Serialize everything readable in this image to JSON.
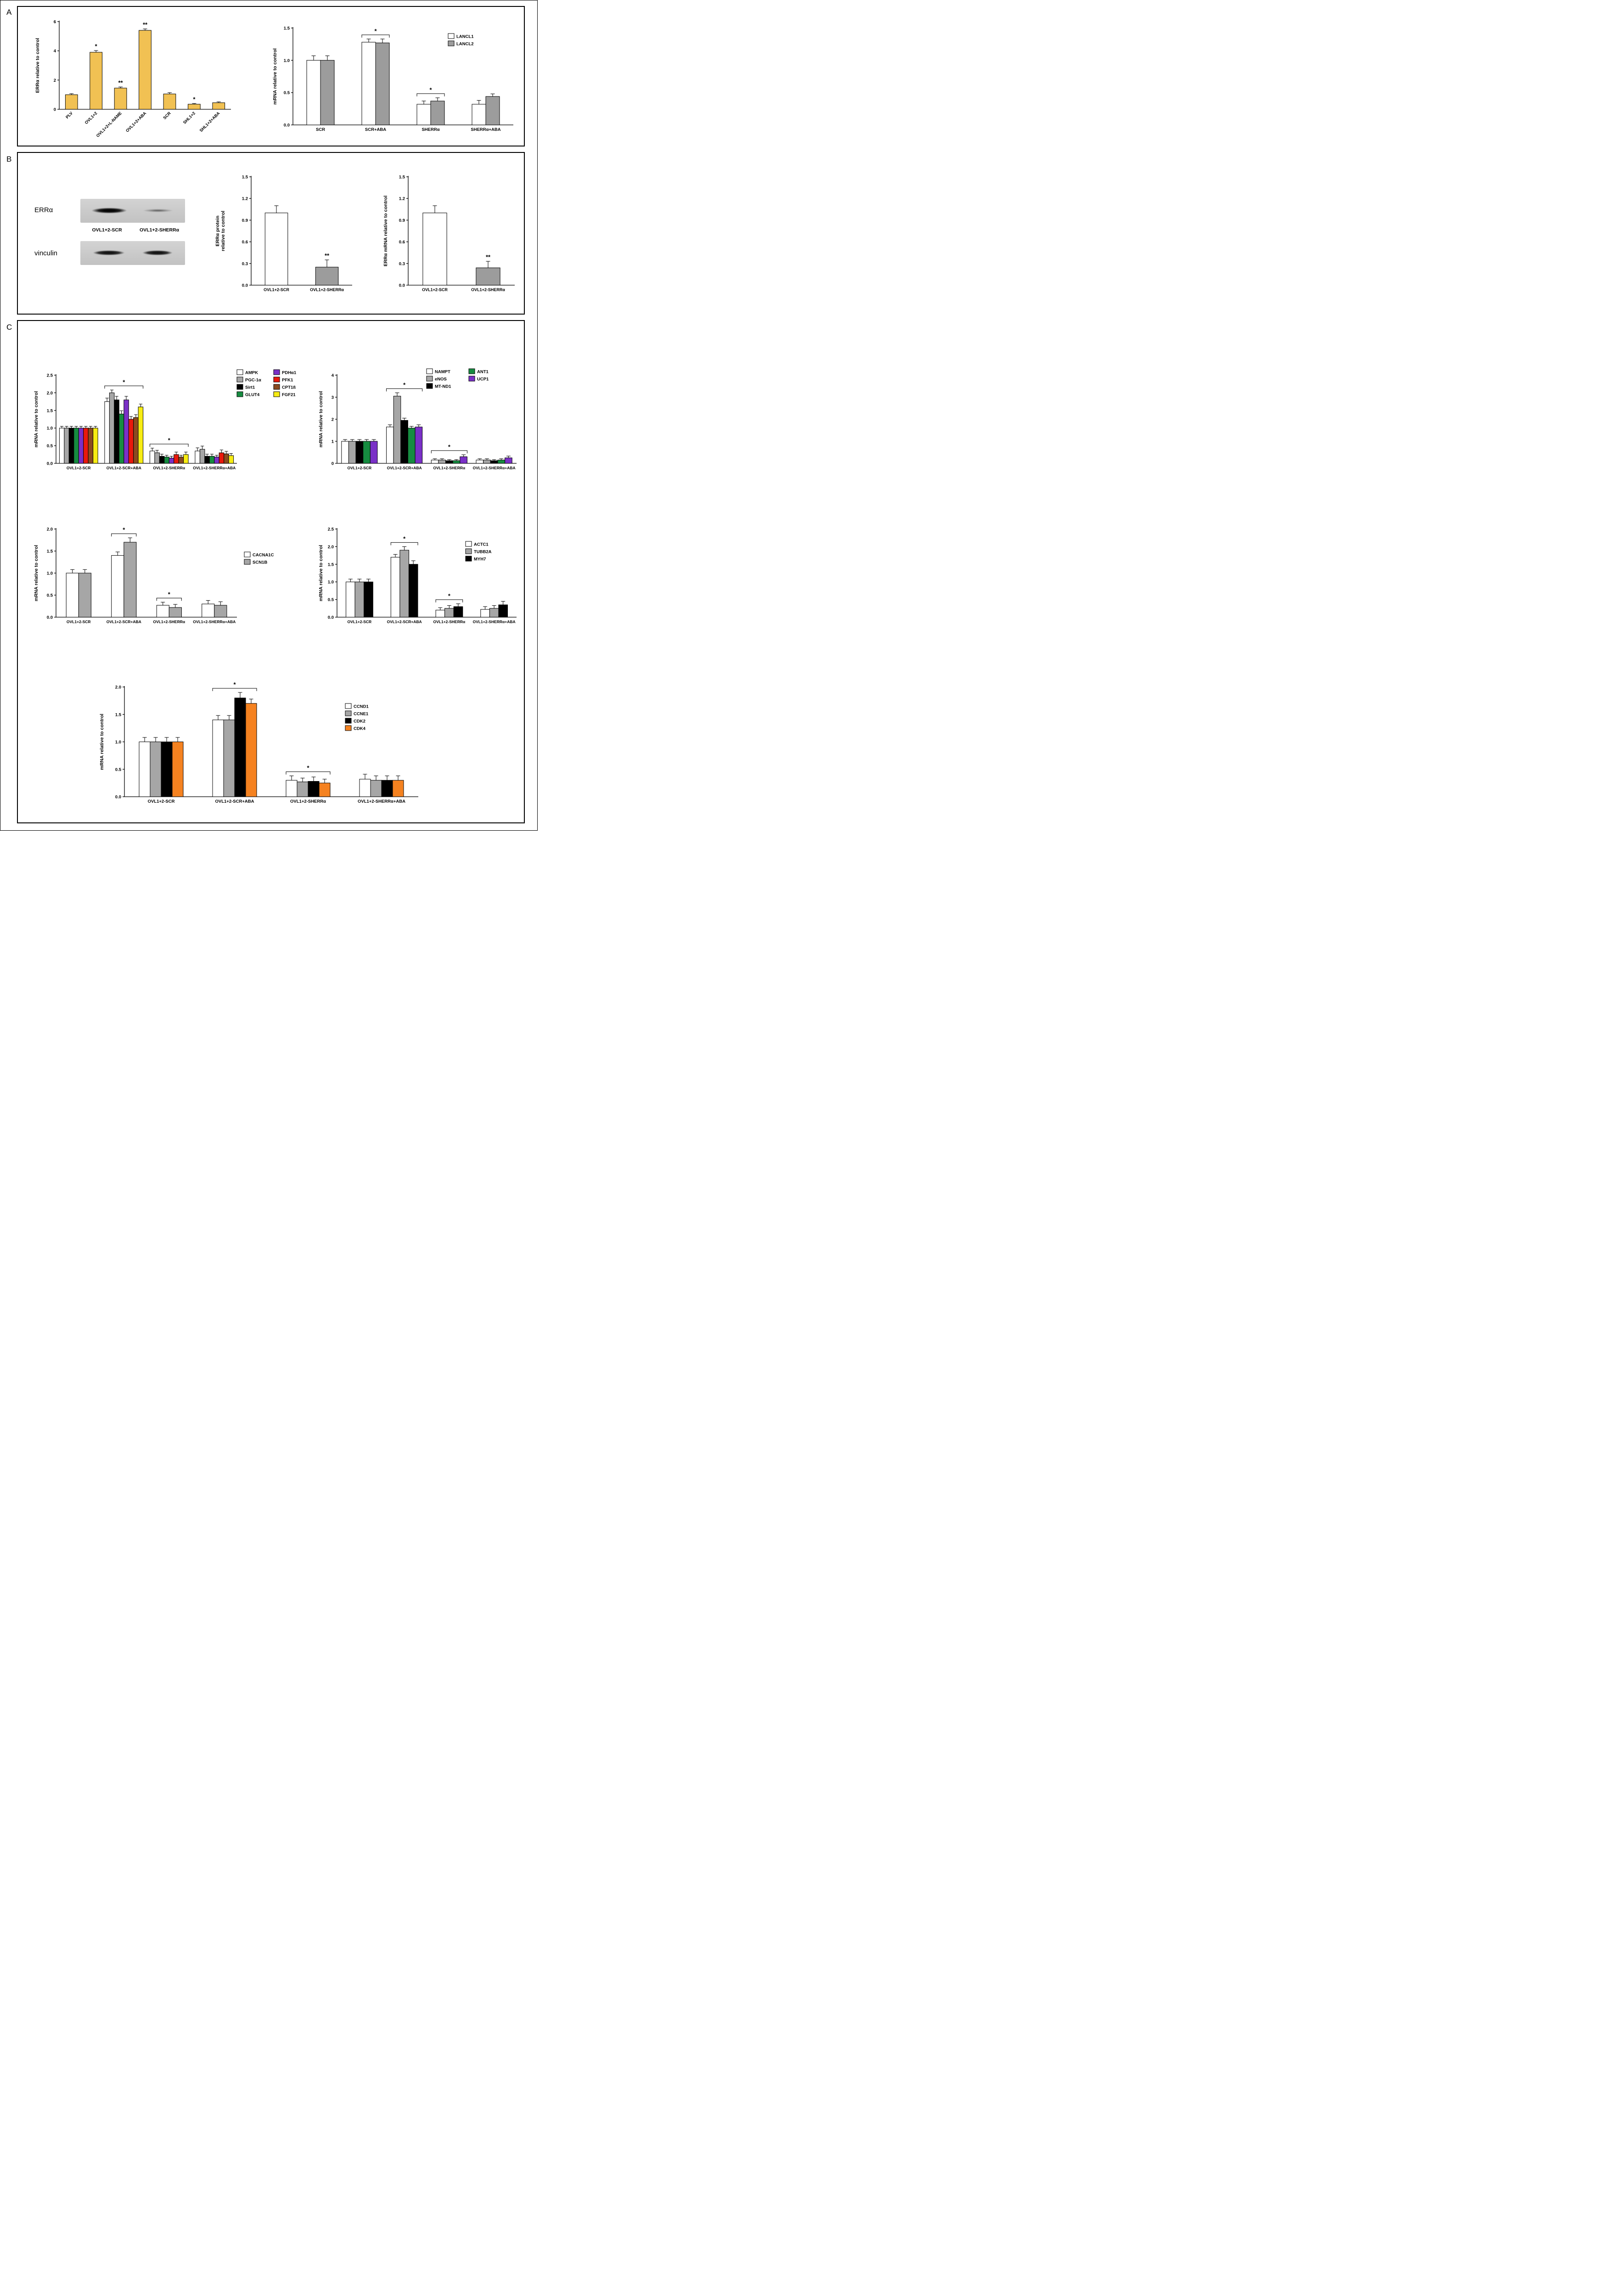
{
  "page": {
    "panel_a_label": "A",
    "panel_b_label": "B",
    "panel_c_label": "C"
  },
  "panel_b": {
    "blot": {
      "protein1": "ERRα",
      "protein2": "vinculin",
      "lane1": "OVL1+2-SCR",
      "lane2": "OVL1+2-SHERRα"
    }
  },
  "chart_data": [
    {
      "id": "erra-lentivirus",
      "type": "bar",
      "title": "",
      "ylabel": "ERRα relative to control",
      "ylim": [
        0,
        6
      ],
      "yticks": [
        0,
        2,
        4,
        6
      ],
      "ytick_labels": [
        "0",
        "2",
        "4",
        "6"
      ],
      "categories": [
        "PLV",
        "OVL1+2",
        "OVL1+2+L-NAME",
        "OVL1+2+ABA",
        "SCR",
        "SHL1+2",
        "SHL1+2+ABA"
      ],
      "series": [
        {
          "name": "",
          "color": "#F1C153",
          "values": [
            1.0,
            3.9,
            1.45,
            5.4,
            1.05,
            0.35,
            0.45
          ],
          "errors": [
            0.07,
            0.12,
            0.08,
            0.1,
            0.09,
            0.05,
            0.06
          ]
        }
      ],
      "annotations": [
        {
          "type": "star",
          "cat": 1,
          "text": "*"
        },
        {
          "type": "star",
          "cat": 2,
          "text": "**"
        },
        {
          "type": "star",
          "cat": 3,
          "text": "**"
        },
        {
          "type": "star",
          "cat": 5,
          "text": "*"
        }
      ],
      "legend": false
    },
    {
      "id": "lancl-mrna",
      "type": "bar",
      "title": "",
      "ylabel": "mRNA relative to control",
      "ylim": [
        0,
        1.5
      ],
      "yticks": [
        0,
        0.5,
        1.0,
        1.5
      ],
      "ytick_labels": [
        "0.0",
        "0.5",
        "1.0",
        "1.5"
      ],
      "categories": [
        "SCR",
        "SCR+ABA",
        "SHERRα",
        "SHERRα+ABA"
      ],
      "series": [
        {
          "name": "LANCL1",
          "color": "#FFFFFF",
          "values": [
            1.0,
            1.28,
            0.32,
            0.32
          ],
          "errors": [
            0.07,
            0.05,
            0.05,
            0.06
          ]
        },
        {
          "name": "LANCL2",
          "color": "#9C9C9C",
          "values": [
            1.0,
            1.27,
            0.37,
            0.44
          ],
          "errors": [
            0.07,
            0.06,
            0.05,
            0.04
          ]
        }
      ],
      "annotations": [
        {
          "type": "bracket",
          "cat": 1,
          "text": "*"
        },
        {
          "type": "bracket",
          "cat": 2,
          "text": "*"
        }
      ],
      "legend": true
    },
    {
      "id": "erra-protein",
      "type": "bar",
      "title": "",
      "ylabel": "ERRα protein\nrelative to control",
      "ylim": [
        0,
        1.5
      ],
      "yticks": [
        0,
        0.3,
        0.6,
        0.9,
        1.2,
        1.5
      ],
      "ytick_labels": [
        "0.0",
        "0.3",
        "0.6",
        "0.9",
        "1.2",
        "1.5"
      ],
      "categories": [
        "OVL1+2-SCR",
        "OVL1+2-SHERRα"
      ],
      "series": [
        {
          "name": "",
          "colors": [
            "#FFFFFF",
            "#9C9C9C"
          ],
          "values": [
            1.0,
            0.25
          ],
          "errors": [
            0.1,
            0.1
          ]
        }
      ],
      "annotations": [
        {
          "type": "star",
          "cat": 1,
          "text": "**"
        }
      ],
      "legend": false
    },
    {
      "id": "erra-mrna",
      "type": "bar",
      "title": "",
      "ylabel": "ERRα mRNA relative to control",
      "ylim": [
        0,
        1.5
      ],
      "yticks": [
        0,
        0.3,
        0.6,
        0.9,
        1.2,
        1.5
      ],
      "ytick_labels": [
        "0.0",
        "0.3",
        "0.6",
        "0.9",
        "1.2",
        "1.5"
      ],
      "categories": [
        "OVL1+2-SCR",
        "OVL1+2-SHERRα"
      ],
      "series": [
        {
          "name": "",
          "colors": [
            "#FFFFFF",
            "#9C9C9C"
          ],
          "values": [
            1.0,
            0.24
          ],
          "errors": [
            0.1,
            0.09
          ]
        }
      ],
      "annotations": [
        {
          "type": "star",
          "cat": 1,
          "text": "**"
        }
      ],
      "legend": false
    },
    {
      "id": "metabolic-genes",
      "type": "bar",
      "title": "",
      "ylabel": "mRNA relative to control",
      "ylim": [
        0,
        2.5
      ],
      "yticks": [
        0,
        0.5,
        1.0,
        1.5,
        2.0,
        2.5
      ],
      "ytick_labels": [
        "0.0",
        "0.5",
        "1.0",
        "1.5",
        "2.0",
        "2.5"
      ],
      "categories": [
        "OVL1+2-SCR",
        "OVL1+2-SCR+ABA",
        "OVL1+2-SHERRα",
        "OVL1+2-SHERRα+ABA"
      ],
      "series": [
        {
          "name": "AMPK",
          "color": "#FFFFFF",
          "values": [
            1.0,
            1.75,
            0.35,
            0.35
          ],
          "errors": [
            0.05,
            0.1,
            0.08,
            0.09
          ]
        },
        {
          "name": "PGC-1α",
          "color": "#A6A6A6",
          "values": [
            1.0,
            2.0,
            0.3,
            0.4
          ],
          "errors": [
            0.05,
            0.08,
            0.07,
            0.09
          ]
        },
        {
          "name": "Sirt1",
          "color": "#000000",
          "values": [
            1.0,
            1.8,
            0.2,
            0.2
          ],
          "errors": [
            0.05,
            0.1,
            0.06,
            0.06
          ]
        },
        {
          "name": "GLUT4",
          "color": "#168C40",
          "values": [
            1.0,
            1.4,
            0.18,
            0.2
          ],
          "errors": [
            0.05,
            0.09,
            0.05,
            0.06
          ]
        },
        {
          "name": "PDHα1",
          "color": "#7A30C7",
          "values": [
            1.0,
            1.8,
            0.15,
            0.18
          ],
          "errors": [
            0.05,
            0.1,
            0.05,
            0.05
          ]
        },
        {
          "name": "PFK1",
          "color": "#E8190C",
          "values": [
            1.0,
            1.25,
            0.25,
            0.3
          ],
          "errors": [
            0.05,
            0.08,
            0.07,
            0.08
          ]
        },
        {
          "name": "CPT1ß",
          "color": "#8A4B21",
          "values": [
            1.0,
            1.3,
            0.18,
            0.27
          ],
          "errors": [
            0.05,
            0.08,
            0.05,
            0.07
          ]
        },
        {
          "name": "FGF21",
          "color": "#F7EC13",
          "values": [
            1.0,
            1.6,
            0.25,
            0.22
          ],
          "errors": [
            0.05,
            0.08,
            0.07,
            0.06
          ]
        }
      ],
      "annotations": [
        {
          "type": "bracket",
          "cat": 1,
          "text": "*"
        },
        {
          "type": "bracket",
          "cat": 2,
          "text": "*"
        }
      ],
      "legend": true
    },
    {
      "id": "mitochondrial-genes",
      "type": "bar",
      "title": "",
      "ylabel": "mRNA relative to control",
      "ylim": [
        0,
        4
      ],
      "yticks": [
        0,
        1,
        2,
        3,
        4
      ],
      "ytick_labels": [
        "0",
        "1",
        "2",
        "3",
        "4"
      ],
      "categories": [
        "OVL1+2-SCR",
        "OVL1+2-SCR+ABA",
        "OVL1+2-SHERRα",
        "OVL1+2-SHERRα+ABA"
      ],
      "series": [
        {
          "name": "NAMPT",
          "color": "#FFFFFF",
          "values": [
            1.0,
            1.65,
            0.15,
            0.15
          ],
          "errors": [
            0.08,
            0.1,
            0.06,
            0.06
          ]
        },
        {
          "name": "eNOS",
          "color": "#A6A6A6",
          "values": [
            1.0,
            3.05,
            0.15,
            0.15
          ],
          "errors": [
            0.08,
            0.15,
            0.06,
            0.06
          ]
        },
        {
          "name": "MT-ND1",
          "color": "#000000",
          "values": [
            1.0,
            1.95,
            0.12,
            0.12
          ],
          "errors": [
            0.08,
            0.1,
            0.05,
            0.05
          ]
        },
        {
          "name": "ANT1",
          "color": "#168C40",
          "values": [
            1.0,
            1.6,
            0.12,
            0.15
          ],
          "errors": [
            0.08,
            0.08,
            0.05,
            0.06
          ]
        },
        {
          "name": "UCP1",
          "color": "#7A30C7",
          "values": [
            1.0,
            1.65,
            0.3,
            0.25
          ],
          "errors": [
            0.08,
            0.1,
            0.09,
            0.08
          ]
        }
      ],
      "annotations": [
        {
          "type": "bracket",
          "cat": 1,
          "text": "*"
        },
        {
          "type": "bracket",
          "cat": 2,
          "text": "*"
        }
      ],
      "legend": true
    },
    {
      "id": "ion-channel-genes",
      "type": "bar",
      "title": "",
      "ylabel": "mRNA relative to control",
      "ylim": [
        0,
        2.0
      ],
      "yticks": [
        0,
        0.5,
        1.0,
        1.5,
        2.0
      ],
      "ytick_labels": [
        "0.0",
        "0.5",
        "1.0",
        "1.5",
        "2.0"
      ],
      "categories": [
        "OVL1+2-SCR",
        "OVL1+2-SCR+ABA",
        "OVL1+2-SHERRα",
        "OVL1+2-SHERRα+ABA"
      ],
      "series": [
        {
          "name": "CACNA1C",
          "color": "#FFFFFF",
          "values": [
            1.0,
            1.4,
            0.27,
            0.3
          ],
          "errors": [
            0.08,
            0.08,
            0.07,
            0.08
          ]
        },
        {
          "name": "SCN1B",
          "color": "#A6A6A6",
          "values": [
            1.0,
            1.7,
            0.22,
            0.27
          ],
          "errors": [
            0.08,
            0.1,
            0.07,
            0.08
          ]
        }
      ],
      "annotations": [
        {
          "type": "bracket",
          "cat": 1,
          "text": "*"
        },
        {
          "type": "bracket",
          "cat": 2,
          "text": "*"
        }
      ],
      "legend": true
    },
    {
      "id": "structural-genes",
      "type": "bar",
      "title": "",
      "ylabel": "mRNA relative to control",
      "ylim": [
        0,
        2.5
      ],
      "yticks": [
        0,
        0.5,
        1.0,
        1.5,
        2.0,
        2.5
      ],
      "ytick_labels": [
        "0.0",
        "0.5",
        "1.0",
        "1.5",
        "2.0",
        "2.5"
      ],
      "categories": [
        "OVL1+2-SCR",
        "OVL1+2-SCR+ABA",
        "OVL1+2-SHERRα",
        "OVL1+2-SHERRα+ABA"
      ],
      "series": [
        {
          "name": "ACTC1",
          "color": "#FFFFFF",
          "values": [
            1.0,
            1.7,
            0.2,
            0.22
          ],
          "errors": [
            0.08,
            0.08,
            0.07,
            0.08
          ]
        },
        {
          "name": "TUBB2A",
          "color": "#A6A6A6",
          "values": [
            1.0,
            1.9,
            0.25,
            0.25
          ],
          "errors": [
            0.08,
            0.1,
            0.08,
            0.08
          ]
        },
        {
          "name": "MYH7",
          "color": "#000000",
          "values": [
            1.0,
            1.5,
            0.3,
            0.35
          ],
          "errors": [
            0.08,
            0.1,
            0.08,
            0.1
          ]
        }
      ],
      "annotations": [
        {
          "type": "bracket",
          "cat": 1,
          "text": "*"
        },
        {
          "type": "bracket",
          "cat": 2,
          "text": "*"
        }
      ],
      "legend": true
    },
    {
      "id": "cell-cycle-genes",
      "type": "bar",
      "title": "",
      "ylabel": "mRNA relative to control",
      "ylim": [
        0,
        2.0
      ],
      "yticks": [
        0,
        0.5,
        1.0,
        1.5,
        2.0
      ],
      "ytick_labels": [
        "0.0",
        "0.5",
        "1.0",
        "1.5",
        "2.0"
      ],
      "categories": [
        "OVL1+2-SCR",
        "OVL1+2-SCR+ABA",
        "OVL1+2-SHERRα",
        "OVL1+2-SHERRα+ABA"
      ],
      "series": [
        {
          "name": "CCND1",
          "color": "#FFFFFF",
          "values": [
            1.0,
            1.4,
            0.3,
            0.32
          ],
          "errors": [
            0.08,
            0.08,
            0.08,
            0.09
          ]
        },
        {
          "name": "CCNE1",
          "color": "#A6A6A6",
          "values": [
            1.0,
            1.4,
            0.27,
            0.3
          ],
          "errors": [
            0.08,
            0.08,
            0.07,
            0.08
          ]
        },
        {
          "name": "CDK2",
          "color": "#000000",
          "values": [
            1.0,
            1.8,
            0.28,
            0.3
          ],
          "errors": [
            0.08,
            0.1,
            0.08,
            0.08
          ]
        },
        {
          "name": "CDK4",
          "color": "#F58220",
          "values": [
            1.0,
            1.7,
            0.25,
            0.3
          ],
          "errors": [
            0.08,
            0.08,
            0.07,
            0.08
          ]
        }
      ],
      "annotations": [
        {
          "type": "bracket",
          "cat": 1,
          "text": "*"
        },
        {
          "type": "bracket",
          "cat": 2,
          "text": "*"
        }
      ],
      "legend": true
    }
  ]
}
